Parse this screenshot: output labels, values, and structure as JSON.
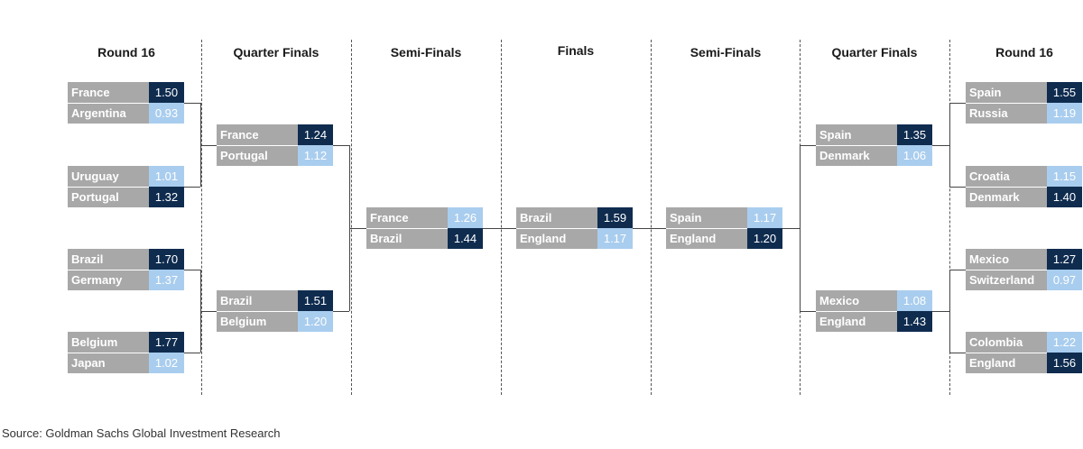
{
  "rounds": [
    "Round 16",
    "Quarter Finals",
    "Semi-Finals",
    "Finals",
    "Semi-Finals",
    "Quarter Finals",
    "Round 16"
  ],
  "colors": {
    "winner": "#0f2c4f",
    "loser": "#a9cdee",
    "name_bg": "#a8a8a8"
  },
  "matches": {
    "left_r16": [
      [
        {
          "team": "France",
          "score": "1.50",
          "win": true
        },
        {
          "team": "Argentina",
          "score": "0.93",
          "win": false
        }
      ],
      [
        {
          "team": "Uruguay",
          "score": "1.01",
          "win": false
        },
        {
          "team": "Portugal",
          "score": "1.32",
          "win": true
        }
      ],
      [
        {
          "team": "Brazil",
          "score": "1.70",
          "win": true
        },
        {
          "team": "Germany",
          "score": "1.37",
          "win": false
        }
      ],
      [
        {
          "team": "Belgium",
          "score": "1.77",
          "win": true
        },
        {
          "team": "Japan",
          "score": "1.02",
          "win": false
        }
      ]
    ],
    "left_qf": [
      [
        {
          "team": "France",
          "score": "1.24",
          "win": true
        },
        {
          "team": "Portugal",
          "score": "1.12",
          "win": false
        }
      ],
      [
        {
          "team": "Brazil",
          "score": "1.51",
          "win": true
        },
        {
          "team": "Belgium",
          "score": "1.20",
          "win": false
        }
      ]
    ],
    "left_sf": [
      [
        {
          "team": "France",
          "score": "1.26",
          "win": false
        },
        {
          "team": "Brazil",
          "score": "1.44",
          "win": true
        }
      ]
    ],
    "final": [
      [
        {
          "team": "Brazil",
          "score": "1.59",
          "win": true
        },
        {
          "team": "England",
          "score": "1.17",
          "win": false
        }
      ]
    ],
    "right_sf": [
      [
        {
          "team": "Spain",
          "score": "1.17",
          "win": false
        },
        {
          "team": "England",
          "score": "1.20",
          "win": true
        }
      ]
    ],
    "right_qf": [
      [
        {
          "team": "Spain",
          "score": "1.35",
          "win": true
        },
        {
          "team": "Denmark",
          "score": "1.06",
          "win": false
        }
      ],
      [
        {
          "team": "Mexico",
          "score": "1.08",
          "win": false
        },
        {
          "team": "England",
          "score": "1.43",
          "win": true
        }
      ]
    ],
    "right_r16": [
      [
        {
          "team": "Spain",
          "score": "1.55",
          "win": true
        },
        {
          "team": "Russia",
          "score": "1.19",
          "win": false
        }
      ],
      [
        {
          "team": "Croatia",
          "score": "1.15",
          "win": false
        },
        {
          "team": "Denmark",
          "score": "1.40",
          "win": true
        }
      ],
      [
        {
          "team": "Mexico",
          "score": "1.27",
          "win": true
        },
        {
          "team": "Switzerland",
          "score": "0.97",
          "win": false
        }
      ],
      [
        {
          "team": "Colombia",
          "score": "1.22",
          "win": false
        },
        {
          "team": "England",
          "score": "1.56",
          "win": true
        }
      ]
    ]
  },
  "source": "Source: Goldman Sachs Global Investment Research"
}
